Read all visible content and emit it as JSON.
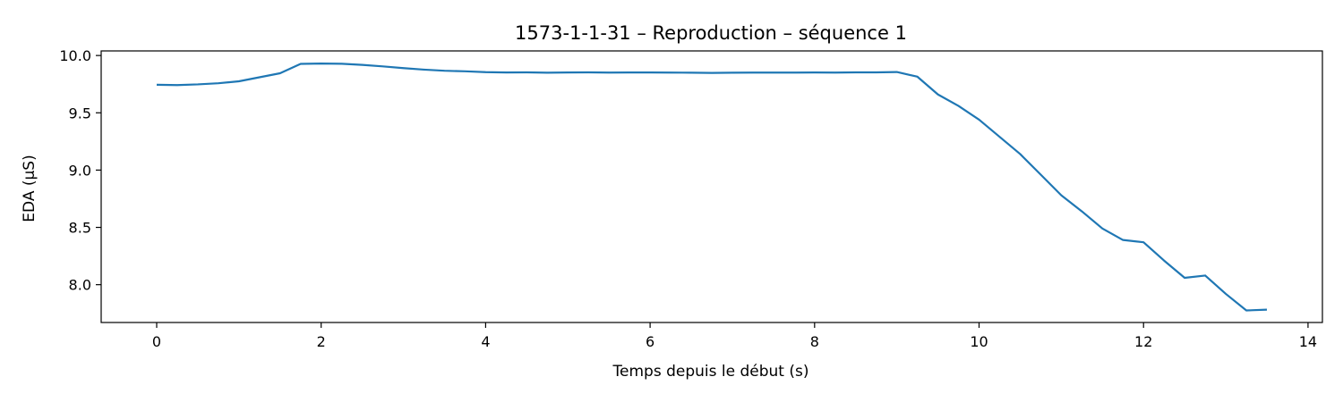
{
  "chart_data": {
    "type": "line",
    "title": "1573-1-1-31 – Reproduction – séquence 1",
    "xlabel": "Temps depuis le début (s)",
    "ylabel": "EDA (µS)",
    "xlim": [
      -0.675,
      14.175
    ],
    "ylim": [
      7.67,
      10.04
    ],
    "xticks": [
      0,
      2,
      4,
      6,
      8,
      10,
      12,
      14
    ],
    "yticks": [
      8.0,
      8.5,
      9.0,
      9.5,
      10.0
    ],
    "xtick_labels": [
      "0",
      "2",
      "4",
      "6",
      "8",
      "10",
      "12",
      "14"
    ],
    "ytick_labels": [
      "8.0",
      "8.5",
      "9.0",
      "9.5",
      "10.0"
    ],
    "grid": false,
    "series": [
      {
        "color": "#1f77b4",
        "x": [
          0,
          0.25,
          0.5,
          0.75,
          1.0,
          1.25,
          1.5,
          1.75,
          2.0,
          2.25,
          2.5,
          2.75,
          3.0,
          3.25,
          3.5,
          3.75,
          4.0,
          4.25,
          4.5,
          4.75,
          5.0,
          5.25,
          5.5,
          5.75,
          6.0,
          6.25,
          6.5,
          6.75,
          7.0,
          7.25,
          7.5,
          7.75,
          8.0,
          8.25,
          8.5,
          8.75,
          9.0,
          9.25,
          9.5,
          9.75,
          10.0,
          10.25,
          10.5,
          10.75,
          11.0,
          11.25,
          11.5,
          11.75,
          12.0,
          12.25,
          12.5,
          12.75,
          13.0,
          13.25,
          13.5
        ],
        "y": [
          9.745,
          9.742,
          9.748,
          9.758,
          9.775,
          9.81,
          9.845,
          9.927,
          9.93,
          9.928,
          9.918,
          9.905,
          9.89,
          9.877,
          9.867,
          9.862,
          9.855,
          9.852,
          9.853,
          9.85,
          9.852,
          9.853,
          9.851,
          9.852,
          9.852,
          9.851,
          9.85,
          9.848,
          9.85,
          9.851,
          9.851,
          9.851,
          9.852,
          9.851,
          9.853,
          9.853,
          9.856,
          9.815,
          9.66,
          9.56,
          9.44,
          9.29,
          9.14,
          8.96,
          8.78,
          8.64,
          8.49,
          8.39,
          8.37,
          8.21,
          8.06,
          8.08,
          7.92,
          7.775,
          7.782
        ]
      }
    ]
  }
}
